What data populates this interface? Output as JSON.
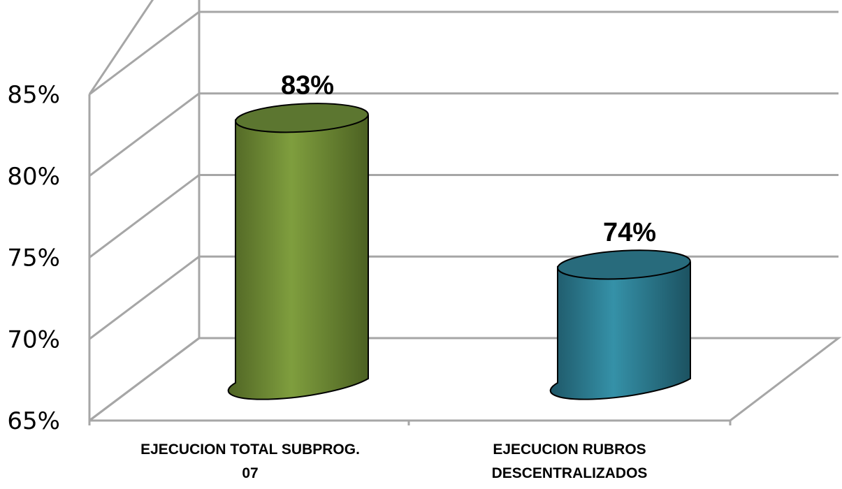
{
  "chart_data": {
    "type": "bar",
    "style": "3d-cylinder",
    "categories": [
      [
        "EJECUCION TOTAL  SUBPROG.",
        "07"
      ],
      [
        "EJECUCION RUBROS",
        "DESCENTRALIZADOS"
      ]
    ],
    "values": [
      83,
      74
    ],
    "data_labels": [
      "83%",
      "74%"
    ],
    "colors": [
      "#77933c",
      "#31859c"
    ],
    "ylim": [
      65,
      85
    ],
    "yticks": [
      65,
      70,
      75,
      80,
      85
    ],
    "ytick_labels": [
      "65%",
      "70%",
      "75%",
      "80%",
      "85%"
    ],
    "grid": true
  }
}
